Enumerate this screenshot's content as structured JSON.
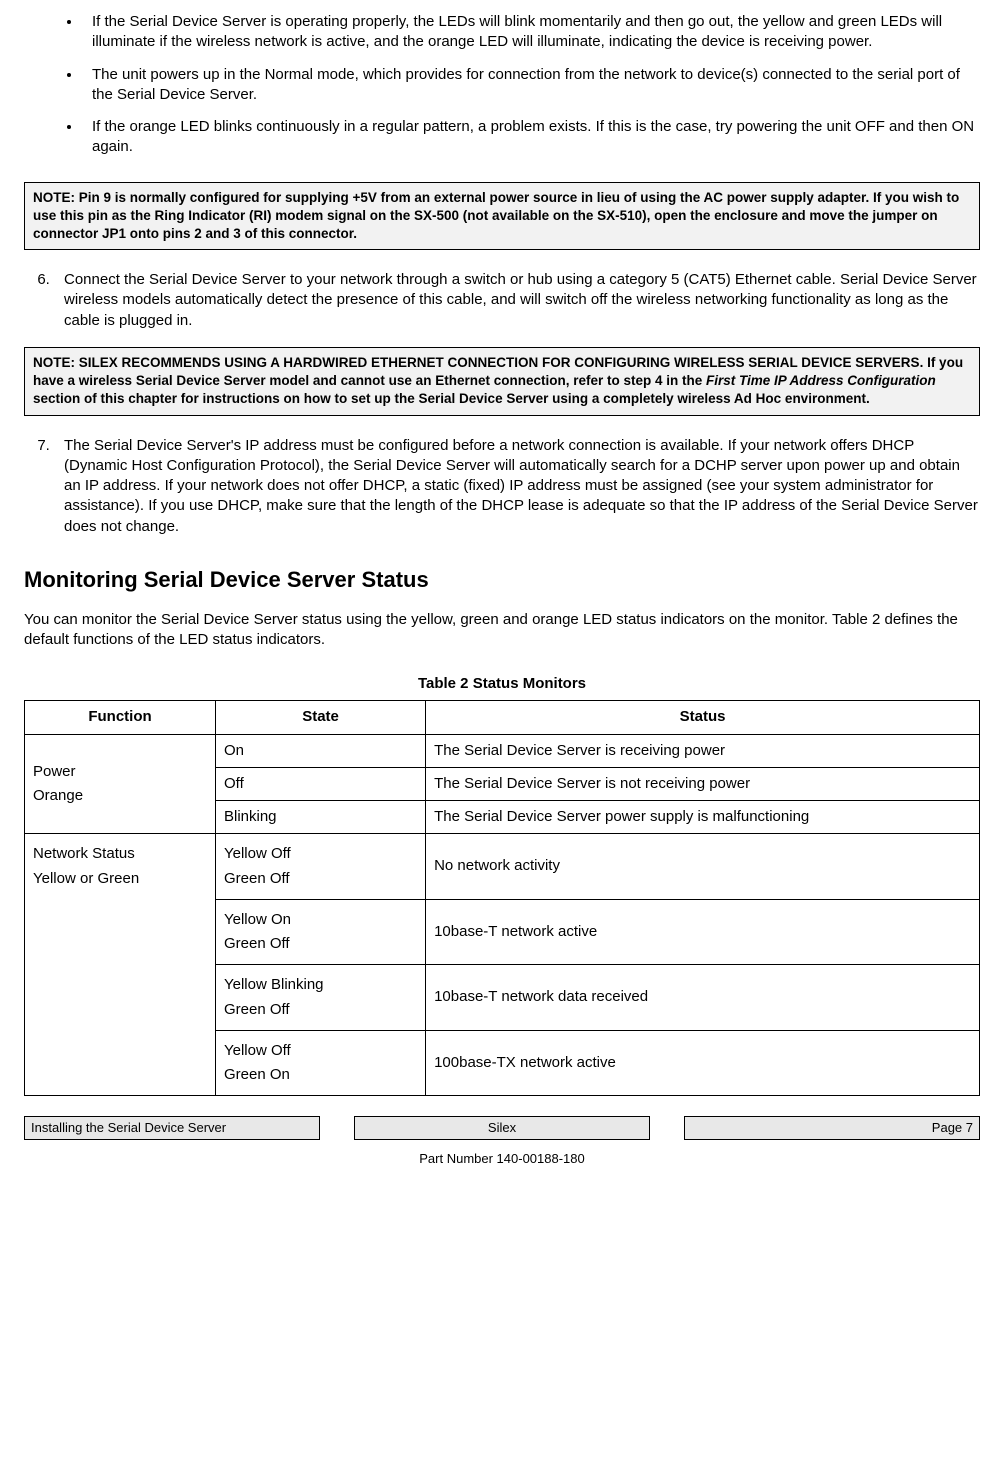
{
  "bullets": [
    "If the Serial Device Server is operating properly, the LEDs will blink momentarily and then go out, the yellow and green LEDs will illuminate if the wireless network is active, and the orange LED will illuminate, indicating the device is receiving power.",
    "The unit powers up in the Normal mode, which provides for connection from the network to device(s) connected to the serial port of the Serial Device Server.",
    "If the orange LED blinks continuously in a regular pattern, a problem exists.  If this is the case, try powering the unit OFF and then ON again."
  ],
  "note1": "NOTE:  Pin 9 is normally configured for supplying +5V from an external power source in lieu of using the AC power supply adapter.  If you wish to use this pin as the Ring Indicator (RI) modem signal on the SX-500 (not available on the SX-510), open the  enclosure and move the jumper on connector JP1 onto pins 2 and 3 of this connector.",
  "step6": "Connect the Serial Device Server to your network through a switch or hub using a category 5 (CAT5) Ethernet cable. Serial Device Server wireless models automatically detect the presence of this cable, and will switch off the wireless networking functionality as long as the cable is plugged in.",
  "note2_prefix": "NOTE:  SILEX RECOMMENDS USING A HARDWIRED ETHERNET CONNECTION FOR CONFIGURING WIRELESS SERIAL DEVICE SERVERS. If you have a wireless Serial Device Server model and cannot use an Ethernet connection, refer to step 4 in the ",
  "note2_emph": "First Time IP Address Configuration",
  "note2_suffix": " section of this chapter for instructions on how to set up the Serial Device Server using a completely wireless Ad Hoc environment.",
  "step7": "The Serial Device Server's IP address must be configured before a network connection is available. If your network offers DHCP (Dynamic Host Configuration Protocol), the Serial Device Server will automatically search for a DCHP server upon power up and obtain an IP address.  If your network does not offer DHCP, a static (fixed) IP address must be assigned (see your system administrator for assistance).  If you use DHCP, make sure that the length of the DHCP lease is adequate so that the IP address of the Serial Device Server does not change.",
  "heading": "Monitoring Serial Device Server Status",
  "heading_para": "You can monitor the Serial Device Server status using the yellow, green and orange LED status indicators on the monitor. Table 2 defines the default functions of the LED status indicators.",
  "table_caption": "Table 2 Status Monitors",
  "table": {
    "headers": [
      "Function",
      "State",
      "Status"
    ],
    "col_widths": [
      "20%",
      "22%",
      "58%"
    ],
    "rows": [
      {
        "func_lines": [
          "Power",
          "Orange"
        ],
        "state_lines": [
          "On"
        ],
        "status": "The Serial Device Server is receiving power"
      },
      {
        "state_lines": [
          "Off"
        ],
        "status": "The Serial Device Server is not receiving power"
      },
      {
        "state_lines": [
          "Blinking"
        ],
        "status": "The Serial Device Server power supply is malfunctioning"
      },
      {
        "func_lines": [
          "Network Status",
          "Yellow or Green"
        ],
        "state_lines": [
          "Yellow Off",
          "Green Off"
        ],
        "status": "No network activity"
      },
      {
        "state_lines": [
          "Yellow On",
          "Green Off"
        ],
        "status": "10base-T network active"
      },
      {
        "state_lines": [
          "Yellow Blinking",
          "Green Off"
        ],
        "status": "10base-T network data received"
      },
      {
        "state_lines": [
          "Yellow Off",
          "Green On"
        ],
        "status": "100base-TX network active"
      }
    ]
  },
  "footer": {
    "left": "Installing the Serial Device Server",
    "center": "Silex",
    "right": "Page 7"
  },
  "part_number": "Part Number 140-00188-180"
}
